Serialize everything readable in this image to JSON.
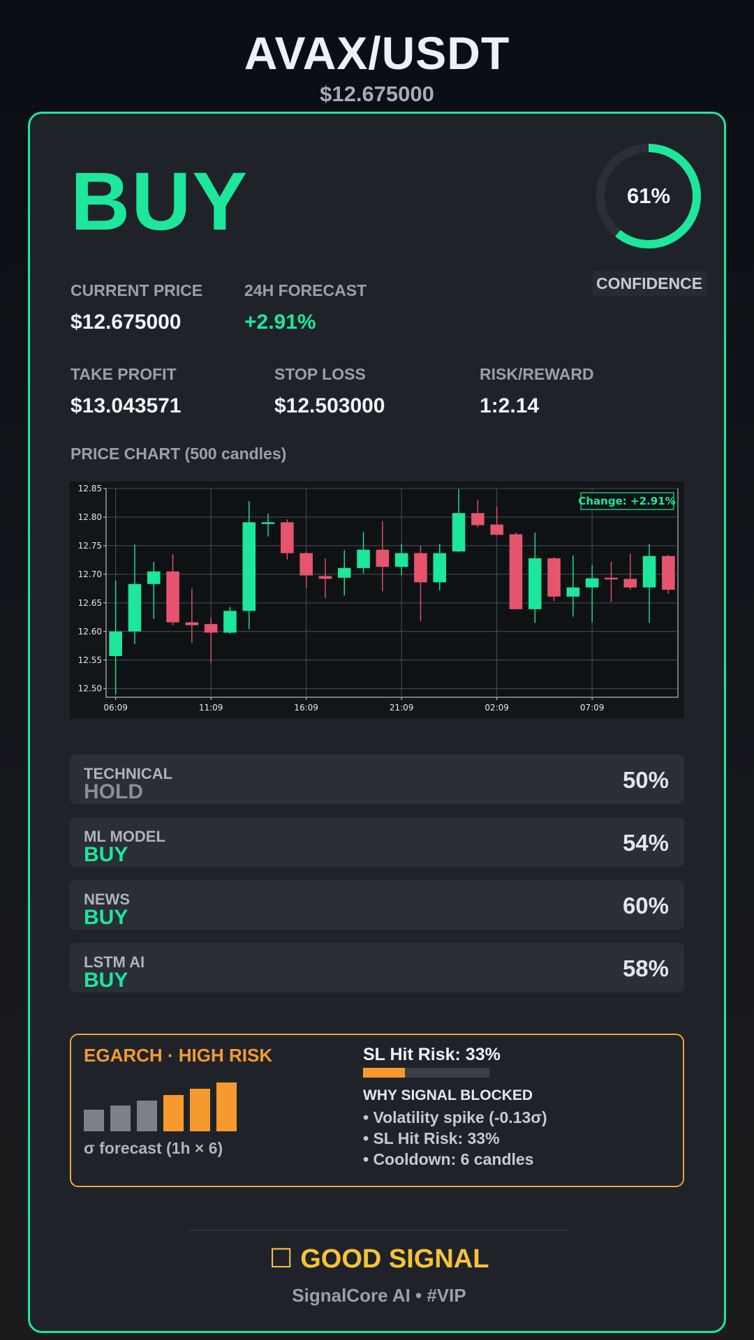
{
  "header": {
    "pair": "AVAX/USDT",
    "price": "$12.675000"
  },
  "signal": {
    "action": "BUY",
    "confidence_value": 61,
    "confidence_text": "61%",
    "confidence_label": "CONFIDENCE"
  },
  "metrics": {
    "current_price": {
      "label": "CURRENT PRICE",
      "value": "$12.675000"
    },
    "forecast": {
      "label": "24H FORECAST",
      "value": "+2.91%"
    },
    "take_profit": {
      "label": "TAKE PROFIT",
      "value": "$13.043571"
    },
    "stop_loss": {
      "label": "STOP LOSS",
      "value": "$12.503000"
    },
    "risk_reward": {
      "label": "RISK/REWARD",
      "value": "1:2.14"
    }
  },
  "chart_section": {
    "title": "PRICE CHART (500 candles)"
  },
  "chart_data": {
    "type": "candlestick",
    "annotation": "Change: +2.91%",
    "ylim": [
      12.485,
      12.85
    ],
    "y_ticks": [
      "12.50",
      "12.55",
      "12.60",
      "12.65",
      "12.70",
      "12.75",
      "12.80",
      "12.85"
    ],
    "x_ticks": [
      {
        "label": "06:09",
        "index": 0
      },
      {
        "label": "11:09",
        "index": 5
      },
      {
        "label": "16:09",
        "index": 10
      },
      {
        "label": "21:09",
        "index": 15
      },
      {
        "label": "02:09",
        "index": 20
      },
      {
        "label": "07:09",
        "index": 25
      }
    ],
    "candles": [
      {
        "o": 12.557,
        "h": 12.689,
        "l": 12.49,
        "c": 12.6
      },
      {
        "o": 12.6,
        "h": 12.752,
        "l": 12.578,
        "c": 12.683
      },
      {
        "o": 12.683,
        "h": 12.722,
        "l": 12.622,
        "c": 12.705
      },
      {
        "o": 12.705,
        "h": 12.735,
        "l": 12.611,
        "c": 12.616
      },
      {
        "o": 12.616,
        "h": 12.675,
        "l": 12.58,
        "c": 12.611
      },
      {
        "o": 12.613,
        "h": 12.624,
        "l": 12.545,
        "c": 12.598
      },
      {
        "o": 12.598,
        "h": 12.643,
        "l": 12.596,
        "c": 12.636
      },
      {
        "o": 12.636,
        "h": 12.828,
        "l": 12.604,
        "c": 12.791
      },
      {
        "o": 12.788,
        "h": 12.806,
        "l": 12.766,
        "c": 12.791
      },
      {
        "o": 12.791,
        "h": 12.796,
        "l": 12.726,
        "c": 12.737
      },
      {
        "o": 12.737,
        "h": 12.74,
        "l": 12.676,
        "c": 12.698
      },
      {
        "o": 12.697,
        "h": 12.728,
        "l": 12.658,
        "c": 12.692
      },
      {
        "o": 12.694,
        "h": 12.742,
        "l": 12.663,
        "c": 12.711
      },
      {
        "o": 12.711,
        "h": 12.774,
        "l": 12.702,
        "c": 12.743
      },
      {
        "o": 12.743,
        "h": 12.793,
        "l": 12.67,
        "c": 12.713
      },
      {
        "o": 12.713,
        "h": 12.753,
        "l": 12.699,
        "c": 12.737
      },
      {
        "o": 12.737,
        "h": 12.75,
        "l": 12.618,
        "c": 12.686
      },
      {
        "o": 12.686,
        "h": 12.753,
        "l": 12.672,
        "c": 12.737
      },
      {
        "o": 12.74,
        "h": 12.849,
        "l": 12.739,
        "c": 12.807
      },
      {
        "o": 12.807,
        "h": 12.83,
        "l": 12.782,
        "c": 12.786
      },
      {
        "o": 12.787,
        "h": 12.818,
        "l": 12.769,
        "c": 12.769
      },
      {
        "o": 12.77,
        "h": 12.773,
        "l": 12.639,
        "c": 12.639
      },
      {
        "o": 12.639,
        "h": 12.773,
        "l": 12.615,
        "c": 12.728
      },
      {
        "o": 12.728,
        "h": 12.73,
        "l": 12.653,
        "c": 12.661
      },
      {
        "o": 12.661,
        "h": 12.733,
        "l": 12.626,
        "c": 12.677
      },
      {
        "o": 12.677,
        "h": 12.716,
        "l": 12.616,
        "c": 12.693
      },
      {
        "o": 12.694,
        "h": 12.722,
        "l": 12.652,
        "c": 12.691
      },
      {
        "o": 12.692,
        "h": 12.736,
        "l": 12.673,
        "c": 12.677
      },
      {
        "o": 12.677,
        "h": 12.753,
        "l": 12.615,
        "c": 12.732
      },
      {
        "o": 12.732,
        "h": 12.734,
        "l": 12.666,
        "c": 12.673
      }
    ]
  },
  "scores": [
    {
      "name": "TECHNICAL",
      "verdict": "HOLD",
      "pct": "50%"
    },
    {
      "name": "ML MODEL",
      "verdict": "BUY",
      "pct": "54%"
    },
    {
      "name": "NEWS",
      "verdict": "BUY",
      "pct": "60%"
    },
    {
      "name": "LSTM AI",
      "verdict": "BUY",
      "pct": "58%"
    }
  ],
  "colors": {
    "accent_green": "#1de79a",
    "candle_up": "#1de79a",
    "candle_down": "#e6546e",
    "risk_orange": "#f79a2e",
    "hold_gray": "#8a8e97",
    "good_signal_yellow": "#f5c23a"
  },
  "risk": {
    "title": "EGARCH · HIGH RISK",
    "sigma_levels": [
      0.4,
      0.48,
      0.57,
      0.68,
      0.79,
      0.91
    ],
    "sigma_caption": "σ forecast (1h × 6)",
    "sl_title": "SL Hit Risk: 33%",
    "sl_value": 0.33,
    "why_title": "WHY SIGNAL BLOCKED",
    "why_items": [
      "• Volatility spike (-0.13σ)",
      "• SL Hit Risk: 33%",
      "• Cooldown: 6 candles"
    ]
  },
  "footer": {
    "icon": "☐",
    "good_signal_text": "GOOD SIGNAL",
    "brand": "SignalCore AI • #VIP"
  }
}
